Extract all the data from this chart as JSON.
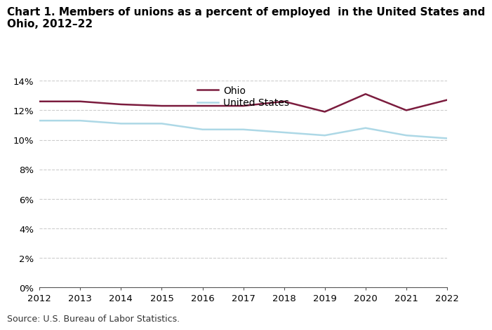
{
  "title_line1": "Chart 1. Members of unions as a percent of employed  in the United States and",
  "title_line2": "Ohio, 2012–22",
  "years": [
    2012,
    2013,
    2014,
    2015,
    2016,
    2017,
    2018,
    2019,
    2020,
    2021,
    2022
  ],
  "ohio": [
    12.6,
    12.6,
    12.4,
    12.3,
    12.3,
    12.3,
    12.6,
    11.9,
    13.1,
    12.0,
    12.7
  ],
  "us": [
    11.3,
    11.3,
    11.1,
    11.1,
    10.7,
    10.7,
    10.5,
    10.3,
    10.8,
    10.3,
    10.1
  ],
  "ohio_color": "#7B1C3E",
  "us_color": "#ADD8E6",
  "ohio_label": "Ohio",
  "us_label": "United States",
  "ylim": [
    0,
    14
  ],
  "yticks": [
    0,
    2,
    4,
    6,
    8,
    10,
    12,
    14
  ],
  "source": "Source: U.S. Bureau of Labor Statistics.",
  "background_color": "#ffffff",
  "grid_color": "#cccccc",
  "title_fontsize": 11,
  "tick_fontsize": 9.5,
  "legend_fontsize": 10,
  "source_fontsize": 9,
  "line_width": 1.8
}
